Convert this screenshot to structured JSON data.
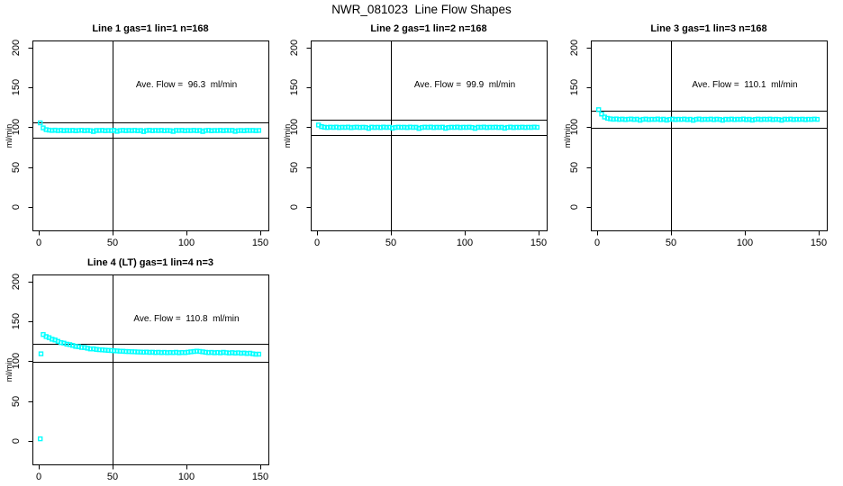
{
  "page": {
    "title": "NWR_081023  Line Flow Shapes"
  },
  "colors": {
    "marker": "#00FFFF",
    "axis": "#000000",
    "text": "#000000",
    "background": "#FFFFFF"
  },
  "chart_data": [
    {
      "type": "scatter",
      "title": "Line 1 gas=1 lin=1 n=168",
      "annotation": "Ave. Flow =  96.3  ml/min",
      "ave_flow_ml_min": 96.3,
      "n": 168,
      "ylabel": "ml/min",
      "xlim": [
        -4.3,
        155.5
      ],
      "ylim": [
        -29,
        208.5
      ],
      "xticks": [
        0,
        50,
        100,
        150
      ],
      "yticks": [
        0,
        50,
        100,
        150,
        200
      ],
      "vline_x": 50,
      "hlines": [
        105.9,
        86.7
      ],
      "annotation_pos": [
        100,
        150
      ],
      "grid": false,
      "x_start": 1,
      "x_step": 2,
      "y": [
        105.5,
        99.2,
        97.0,
        96.4,
        96.0,
        96.4,
        95.8,
        96.3,
        95.7,
        96.1,
        95.8,
        96.2,
        95.6,
        96.0,
        96.3,
        95.7,
        96.1,
        95.8,
        94.7,
        96.0,
        95.9,
        96.2,
        95.6,
        96.0,
        95.8,
        96.2,
        94.9,
        95.9,
        96.2,
        95.7,
        96.1,
        95.8,
        96.2,
        95.6,
        96.0,
        94.6,
        95.9,
        96.3,
        95.7,
        96.1,
        95.8,
        96.2,
        95.6,
        96.0,
        95.8,
        94.8,
        96.1,
        95.9,
        96.2,
        95.6,
        96.0,
        95.8,
        96.2,
        95.7,
        96.1,
        94.7,
        95.9,
        96.2,
        95.6,
        96.0,
        95.8,
        96.2,
        95.7,
        96.1,
        95.9,
        96.2,
        94.9,
        95.8,
        96.0,
        95.6,
        96.1,
        95.9,
        96.1,
        95.7,
        96.0
      ],
      "extra_points": []
    },
    {
      "type": "scatter",
      "title": "Line 2 gas=1 lin=2 n=168",
      "annotation": "Ave. Flow =  99.9  ml/min",
      "ave_flow_ml_min": 99.9,
      "n": 168,
      "ylabel": "ml/min",
      "xlim": [
        -4.3,
        155.5
      ],
      "ylim": [
        -29,
        208.5
      ],
      "xticks": [
        0,
        50,
        100,
        150
      ],
      "yticks": [
        0,
        50,
        100,
        150,
        200
      ],
      "vline_x": 50,
      "hlines": [
        109.9,
        89.9
      ],
      "annotation_pos": [
        100,
        150
      ],
      "grid": false,
      "x_start": 1,
      "x_step": 2,
      "y": [
        102.8,
        100.8,
        100.0,
        99.7,
        100.1,
        99.8,
        100.2,
        99.6,
        100.0,
        99.8,
        100.2,
        99.5,
        99.9,
        100.1,
        99.7,
        100.0,
        99.8,
        98.6,
        100.1,
        99.7,
        100.0,
        99.6,
        100.2,
        99.8,
        100.0,
        98.8,
        99.7,
        100.1,
        99.8,
        100.0,
        99.6,
        100.2,
        99.8,
        100.0,
        98.5,
        99.7,
        100.1,
        99.8,
        100.2,
        99.6,
        100.0,
        99.8,
        100.1,
        98.7,
        99.7,
        100.0,
        99.8,
        100.2,
        99.6,
        100.0,
        99.8,
        100.1,
        99.7,
        98.6,
        100.0,
        99.8,
        100.2,
        99.6,
        100.0,
        99.8,
        100.1,
        99.7,
        100.0,
        98.8,
        99.8,
        100.2,
        99.6,
        100.0,
        99.8,
        100.1,
        99.7,
        100.0,
        99.8,
        100.2,
        99.9
      ],
      "extra_points": []
    },
    {
      "type": "scatter",
      "title": "Line 3 gas=1 lin=3 n=168",
      "annotation": "Ave. Flow =  110.1  ml/min",
      "ave_flow_ml_min": 110.1,
      "n": 168,
      "ylabel": "ml/min",
      "xlim": [
        -4.3,
        155.5
      ],
      "ylim": [
        -29,
        208.5
      ],
      "xticks": [
        0,
        50,
        100,
        150
      ],
      "yticks": [
        0,
        50,
        100,
        150,
        200
      ],
      "vline_x": 50,
      "hlines": [
        121.1,
        99.1
      ],
      "annotation_pos": [
        100,
        150
      ],
      "grid": false,
      "x_start": 1,
      "x_step": 2,
      "y": [
        122.0,
        116.5,
        112.8,
        111.2,
        110.5,
        110.0,
        110.4,
        109.8,
        110.2,
        109.6,
        110.0,
        110.3,
        109.7,
        110.1,
        108.8,
        109.9,
        110.2,
        109.6,
        110.0,
        109.8,
        110.3,
        109.5,
        110.1,
        108.9,
        109.8,
        110.2,
        109.6,
        110.0,
        109.8,
        110.2,
        109.5,
        110.0,
        108.7,
        109.9,
        110.3,
        109.6,
        110.0,
        109.8,
        110.2,
        109.5,
        110.1,
        109.8,
        108.8,
        110.0,
        109.7,
        110.2,
        109.6,
        110.0,
        109.8,
        110.3,
        109.5,
        110.0,
        108.9,
        109.8,
        110.2,
        109.6,
        110.1,
        109.8,
        110.2,
        109.5,
        110.0,
        109.7,
        108.8,
        110.1,
        109.8,
        110.2,
        109.6,
        110.0,
        109.8,
        110.1,
        109.5,
        110.0,
        109.8,
        110.2,
        109.9
      ],
      "extra_points": []
    },
    {
      "type": "scatter",
      "title": "Line 4 (LT) gas=1 lin=4 n=3",
      "annotation": "Ave. Flow =  110.8  ml/min",
      "ave_flow_ml_min": 110.8,
      "n": 3,
      "ylabel": "ml/min",
      "xlim": [
        -4.3,
        155.5
      ],
      "ylim": [
        -29,
        208.5
      ],
      "xticks": [
        0,
        50,
        100,
        150
      ],
      "yticks": [
        0,
        50,
        100,
        150,
        200
      ],
      "vline_x": 50,
      "hlines": [
        121.9,
        99.7
      ],
      "annotation_pos": [
        100,
        150
      ],
      "grid": false,
      "x_start": 3,
      "x_step": 2,
      "y": [
        133.4,
        130.9,
        129.5,
        127.6,
        126.6,
        124.9,
        123.3,
        122.7,
        121.4,
        120.8,
        119.8,
        118.6,
        118.2,
        117.3,
        117.2,
        116.3,
        115.4,
        115.5,
        114.8,
        114.4,
        114.2,
        113.9,
        113.6,
        113.4,
        113.1,
        112.9,
        112.6,
        112.5,
        112.2,
        112.1,
        111.9,
        111.8,
        111.6,
        111.5,
        111.3,
        111.5,
        111.1,
        111.3,
        110.9,
        111.2,
        110.8,
        111.1,
        110.7,
        111.0,
        110.8,
        111.2,
        110.6,
        111.0,
        110.8,
        111.3,
        111.8,
        112.2,
        112.6,
        112.3,
        111.8,
        111.2,
        110.8,
        111.1,
        110.6,
        111.0,
        110.5,
        111.2,
        110.7,
        110.3,
        110.8,
        110.2,
        110.6,
        110.0,
        110.3,
        109.7,
        110.1,
        109.3,
        108.8,
        108.9
      ],
      "extra_points": [
        [
          1,
          3
        ],
        [
          1.5,
          109.3
        ]
      ]
    }
  ]
}
